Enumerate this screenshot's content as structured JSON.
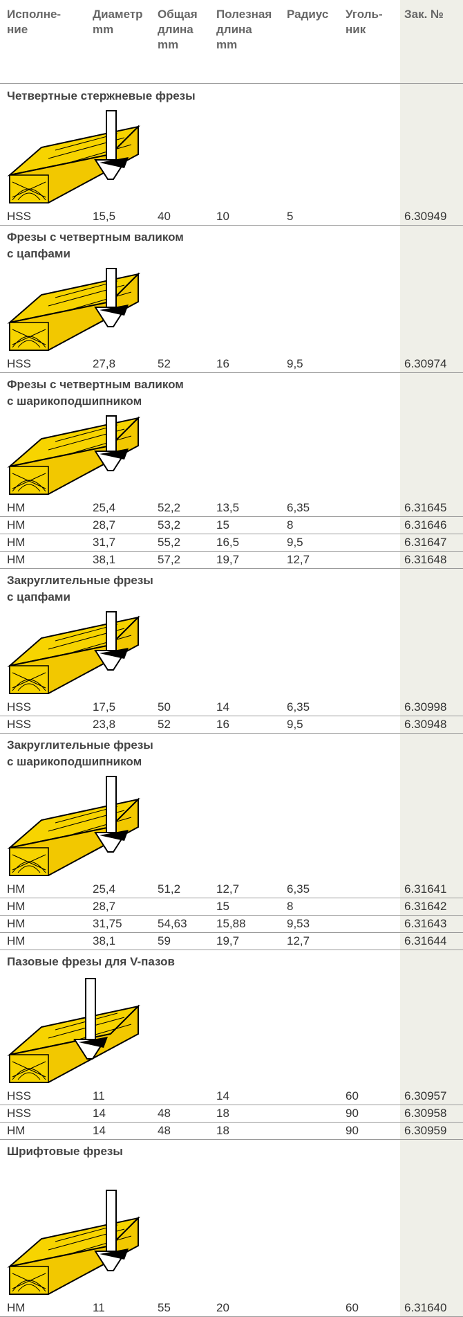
{
  "table": {
    "header": [
      [
        "Исполне-",
        "ние"
      ],
      [
        "Диаметр",
        "mm"
      ],
      [
        "Общая",
        "длина",
        "mm"
      ],
      [
        "Полезная",
        "длина",
        "mm"
      ],
      [
        "Радиус"
      ],
      [
        "Уголь-",
        "ник"
      ],
      [
        "Зак. №"
      ]
    ],
    "sections": [
      {
        "title": [
          "Четвертные стержневые фрезы"
        ],
        "rows": [
          [
            "HSS",
            "15,5",
            "40",
            "10",
            "5",
            null,
            "6.30949"
          ]
        ]
      },
      {
        "title": [
          "Фрезы с четвертным валиком",
          "с цапфами"
        ],
        "rows": [
          [
            "HSS",
            "27,8",
            "52",
            "16",
            "9,5",
            null,
            "6.30974"
          ]
        ]
      },
      {
        "title": [
          "Фрезы с четвертным валиком",
          "с шарикоподшипником"
        ],
        "rows": [
          [
            "HM",
            "25,4",
            "52,2",
            "13,5",
            "6,35",
            null,
            "6.31645"
          ],
          [
            "HM",
            "28,7",
            "53,2",
            "15",
            "8",
            null,
            "6.31646"
          ],
          [
            "HM",
            "31,7",
            "55,2",
            "16,5",
            "9,5",
            null,
            "6.31647"
          ],
          [
            "HM",
            "38,1",
            "57,2",
            "19,7",
            "12,7",
            null,
            "6.31648"
          ]
        ]
      },
      {
        "title": [
          "Закруглительные фрезы",
          "с цапфами"
        ],
        "rows": [
          [
            "HSS",
            "17,5",
            "50",
            "14",
            "6,35",
            null,
            "6.30998"
          ],
          [
            "HSS",
            "23,8",
            "52",
            "16",
            "9,5",
            null,
            "6.30948"
          ]
        ]
      },
      {
        "title": [
          "Закруглительные фрезы",
          "с шарикоподшипником"
        ],
        "rows": [
          [
            "HM",
            "25,4",
            "51,2",
            "12,7",
            "6,35",
            null,
            "6.31641"
          ],
          [
            "HM",
            "28,7",
            null,
            "15",
            "8",
            null,
            "6.31642"
          ],
          [
            "HM",
            "31,75",
            "54,63",
            "15,88",
            "9,53",
            null,
            "6.31643"
          ],
          [
            "HM",
            "38,1",
            "59",
            "19,7",
            "12,7",
            null,
            "6.31644"
          ]
        ]
      },
      {
        "title": [
          "Пазовые фрезы для V-пазов"
        ],
        "rows": [
          [
            "HSS",
            "11",
            null,
            "14",
            null,
            "60",
            "6.30957"
          ],
          [
            "HSS",
            "14",
            "48",
            "18",
            null,
            "90",
            "6.30958"
          ],
          [
            "HM",
            "14",
            "48",
            "18",
            null,
            "90",
            "6.30959"
          ]
        ]
      },
      {
        "title": [
          "Шрифтовые фрезы"
        ],
        "rows": [
          [
            "HM",
            "11",
            "55",
            "20",
            null,
            "60",
            "6.31640"
          ]
        ]
      }
    ]
  }
}
